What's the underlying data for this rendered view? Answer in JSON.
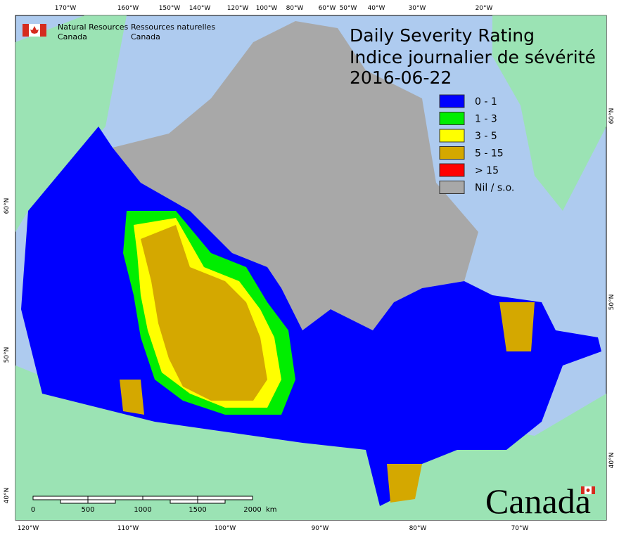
{
  "header": {
    "agency_en_1": "Natural Resources",
    "agency_en_2": "Canada",
    "agency_fr_1": "Ressources naturelles",
    "agency_fr_2": "Canada"
  },
  "title": {
    "line1": "Daily Severity Rating",
    "line2": "Indice journalier de sévérité",
    "date": "2016-06-22"
  },
  "legend": [
    {
      "label": "0 - 1",
      "color": "#0000ff"
    },
    {
      "label": "1 - 3",
      "color": "#00ee00"
    },
    {
      "label": "3 - 5",
      "color": "#ffff00"
    },
    {
      "label": "5 - 15",
      "color": "#d4a800"
    },
    {
      "label": "> 15",
      "color": "#ff0000"
    },
    {
      "label": "Nil / s.o.",
      "color": "#a8a8a8"
    }
  ],
  "graticule": {
    "top": [
      "170°W",
      "160°W",
      "150°W",
      "140°W",
      "120°W",
      "100°W",
      "80°W",
      "60°W",
      "50°W",
      "40°W",
      "30°W",
      "20°W"
    ],
    "bottom": [
      "120°W",
      "110°W",
      "100°W",
      "90°W",
      "80°W",
      "70°W"
    ],
    "left": [
      "60°N",
      "50°N",
      "40°N"
    ],
    "right": [
      "60°N",
      "50°N",
      "40°N"
    ]
  },
  "scale_bar": {
    "labels": [
      "0",
      "500",
      "1000",
      "1500",
      "2000"
    ],
    "unit": "km"
  },
  "wordmark": "Canada"
}
